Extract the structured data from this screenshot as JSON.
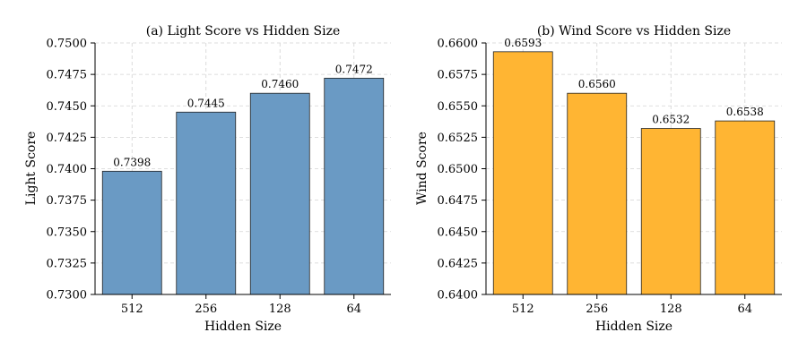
{
  "chart_data": [
    {
      "type": "bar",
      "title": "(a) Light Score vs Hidden Size",
      "xlabel": "Hidden Size",
      "ylabel": "Light Score",
      "categories": [
        "512",
        "256",
        "128",
        "64"
      ],
      "values": [
        0.7398,
        0.7445,
        0.746,
        0.7472
      ],
      "value_labels": [
        "0.7398",
        "0.7445",
        "0.7460",
        "0.7472"
      ],
      "ylim": [
        0.73,
        0.75
      ],
      "yticks": [
        0.73,
        0.7325,
        0.735,
        0.7375,
        0.74,
        0.7425,
        0.745,
        0.7475,
        0.75
      ],
      "ytick_labels": [
        "0.7300",
        "0.7325",
        "0.7350",
        "0.7375",
        "0.7400",
        "0.7425",
        "0.7450",
        "0.7475",
        "0.7500"
      ],
      "grid": true,
      "bar_color": "#6a9ac4"
    },
    {
      "type": "bar",
      "title": "(b) Wind Score vs Hidden Size",
      "xlabel": "Hidden Size",
      "ylabel": "Wind Score",
      "categories": [
        "512",
        "256",
        "128",
        "64"
      ],
      "values": [
        0.6593,
        0.656,
        0.6532,
        0.6538
      ],
      "value_labels": [
        "0.6593",
        "0.6560",
        "0.6532",
        "0.6538"
      ],
      "ylim": [
        0.64,
        0.66
      ],
      "yticks": [
        0.64,
        0.6425,
        0.645,
        0.6475,
        0.65,
        0.6525,
        0.655,
        0.6575,
        0.66
      ],
      "ytick_labels": [
        "0.6400",
        "0.6425",
        "0.6450",
        "0.6475",
        "0.6500",
        "0.6525",
        "0.6550",
        "0.6575",
        "0.6600"
      ],
      "grid": true,
      "bar_color": "#ffb533"
    }
  ]
}
